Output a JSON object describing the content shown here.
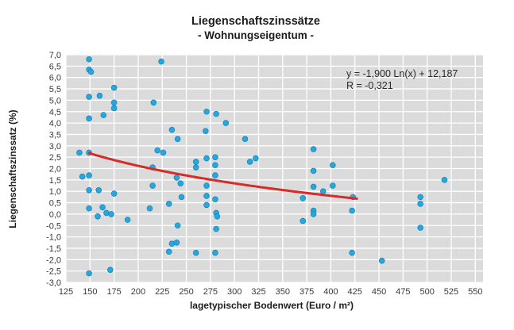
{
  "chart_data": {
    "type": "scatter",
    "title": "Liegenschaftszinssätze",
    "subtitle": "- Wohnungseigentum -",
    "xlabel": "lagetypischer Bodenwert (Euro / m²)",
    "ylabel": "Liegenschaftszinssatz (%)",
    "xlim": [
      125,
      558
    ],
    "ylim": [
      -3.0,
      7.0
    ],
    "grid": true,
    "x_ticks": [
      125,
      150,
      175,
      200,
      225,
      250,
      275,
      300,
      325,
      350,
      375,
      400,
      425,
      450,
      475,
      500,
      525,
      550
    ],
    "x_tick_labels": [
      "125",
      "150",
      "175",
      "200",
      "225",
      "250",
      "275",
      "300",
      "325",
      "350",
      "375",
      "400",
      "425",
      "450",
      "475",
      "500",
      "525",
      "550"
    ],
    "y_ticks": [
      7.0,
      6.5,
      6.0,
      5.5,
      5.0,
      4.5,
      4.0,
      3.5,
      3.0,
      2.5,
      2.0,
      1.5,
      1.0,
      0.5,
      0.0,
      -0.5,
      -1.0,
      -1.5,
      -2.0,
      -2.5,
      -3.0
    ],
    "y_tick_labels": [
      "7,0",
      "6,5",
      "6,0",
      "5,5",
      "5,0",
      "4,5",
      "4,0",
      "3,5",
      "3,0",
      "2,5",
      "2,0",
      "1,5",
      "1,0",
      "0,5",
      "0,0",
      "-0,5",
      "-1,0",
      "-1,5",
      "-2,0",
      "-2,5",
      "-3,0"
    ],
    "points": [
      [
        139,
        2.7
      ],
      [
        142,
        1.65
      ],
      [
        149,
        6.8
      ],
      [
        149,
        6.35
      ],
      [
        151,
        6.25
      ],
      [
        149,
        5.15
      ],
      [
        149,
        4.2
      ],
      [
        149,
        2.7
      ],
      [
        149,
        1.7
      ],
      [
        149,
        1.05
      ],
      [
        149,
        0.25
      ],
      [
        149,
        -2.6
      ],
      [
        158,
        -0.1
      ],
      [
        159,
        1.05
      ],
      [
        160,
        5.2
      ],
      [
        163,
        0.3
      ],
      [
        164,
        4.35
      ],
      [
        167,
        0.05
      ],
      [
        171,
        -2.45
      ],
      [
        172,
        0.0
      ],
      [
        175,
        5.55
      ],
      [
        175,
        4.9
      ],
      [
        175,
        4.65
      ],
      [
        175,
        0.9
      ],
      [
        189,
        -0.25
      ],
      [
        212,
        0.25
      ],
      [
        215,
        2.05
      ],
      [
        215,
        1.25
      ],
      [
        216,
        4.9
      ],
      [
        220,
        2.8
      ],
      [
        224,
        6.7
      ],
      [
        226,
        2.7
      ],
      [
        232,
        0.45
      ],
      [
        232,
        -1.65
      ],
      [
        235,
        3.7
      ],
      [
        235,
        -1.3
      ],
      [
        240,
        1.6
      ],
      [
        240,
        -1.25
      ],
      [
        241,
        3.3
      ],
      [
        241,
        -0.5
      ],
      [
        244,
        1.35
      ],
      [
        245,
        0.75
      ],
      [
        260,
        2.3
      ],
      [
        260,
        2.05
      ],
      [
        260,
        -1.7
      ],
      [
        270,
        3.65
      ],
      [
        271,
        4.5
      ],
      [
        271,
        2.45
      ],
      [
        271,
        1.25
      ],
      [
        271,
        0.8
      ],
      [
        271,
        0.4
      ],
      [
        280,
        2.5
      ],
      [
        280,
        2.15
      ],
      [
        280,
        1.7
      ],
      [
        280,
        0.65
      ],
      [
        281,
        4.4
      ],
      [
        281,
        0.05
      ],
      [
        282,
        -0.1
      ],
      [
        281,
        -0.65
      ],
      [
        280,
        -1.7
      ],
      [
        291,
        4.0
      ],
      [
        311,
        3.3
      ],
      [
        316,
        2.3
      ],
      [
        322,
        2.45
      ],
      [
        371,
        0.7
      ],
      [
        371,
        -0.3
      ],
      [
        382,
        2.85
      ],
      [
        382,
        1.9
      ],
      [
        382,
        1.2
      ],
      [
        382,
        0.15
      ],
      [
        382,
        0.0
      ],
      [
        392,
        1.0
      ],
      [
        402,
        2.15
      ],
      [
        402,
        1.25
      ],
      [
        422,
        0.15
      ],
      [
        422,
        -1.7
      ],
      [
        423,
        0.75
      ],
      [
        453,
        -2.05
      ],
      [
        493,
        0.75
      ],
      [
        493,
        0.45
      ],
      [
        493,
        -0.6
      ],
      [
        518,
        1.5
      ]
    ],
    "trend": {
      "type": "logarithmic",
      "a": -1.9,
      "b": 12.187,
      "x_range": [
        149,
        427
      ],
      "equation_line1": "y =  -1,900 Ln(x) + 12,187",
      "equation_line2": "R =  -0,321"
    },
    "colors": {
      "point_fill": "#29A7DD",
      "point_stroke": "#1489C2",
      "trend": "#D62B28",
      "plot_bg": "#DBDBDB",
      "grid": "#FFFFFF",
      "text": "#2b2b2b"
    },
    "legend": "none"
  }
}
